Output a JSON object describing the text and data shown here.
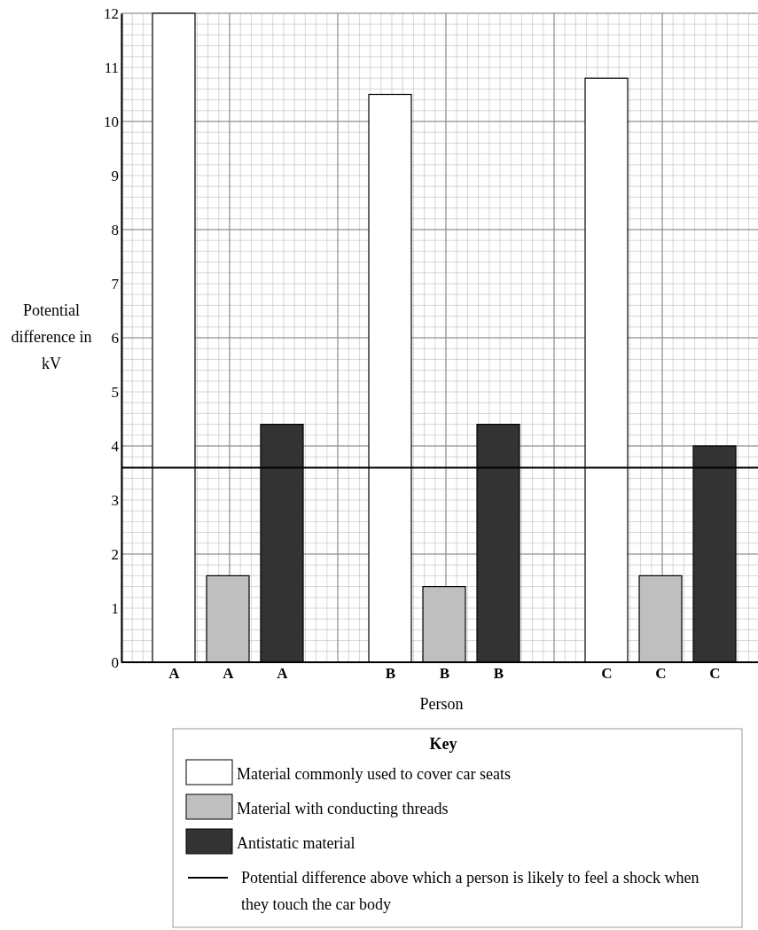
{
  "chart_data": {
    "type": "bar",
    "xlabel": "Person",
    "ylabel": "Potential difference in kV",
    "legend_title": "Key",
    "categories": [
      "A",
      "A",
      "A",
      null,
      "B",
      "B",
      "B",
      null,
      "C",
      "C",
      "C"
    ],
    "series": [
      {
        "name": "Material commonly used to cover car seats",
        "color": "#ffffff",
        "values": [
          12,
          null,
          null,
          null,
          10.5,
          null,
          null,
          null,
          10.8,
          null,
          null
        ]
      },
      {
        "name": "Material with conducting threads",
        "color": "#bfbfbf",
        "values": [
          null,
          1.6,
          null,
          null,
          null,
          1.4,
          null,
          null,
          null,
          1.6,
          null
        ]
      },
      {
        "name": "Antistatic material",
        "color": "#333333",
        "values": [
          null,
          null,
          4.4,
          null,
          null,
          null,
          4.4,
          null,
          null,
          null,
          4.0
        ]
      }
    ],
    "ylim": [
      0,
      12
    ],
    "yticks": [
      0,
      1,
      2,
      3,
      4,
      5,
      6,
      7,
      8,
      9,
      10,
      11,
      12
    ],
    "grid": true,
    "legend": "bottom",
    "ref_lines": [
      {
        "axis": "y",
        "value": 3.6,
        "label": "Potential difference above which a person is likely to feel a shock when they touch the car body",
        "color": "#000000"
      }
    ]
  }
}
